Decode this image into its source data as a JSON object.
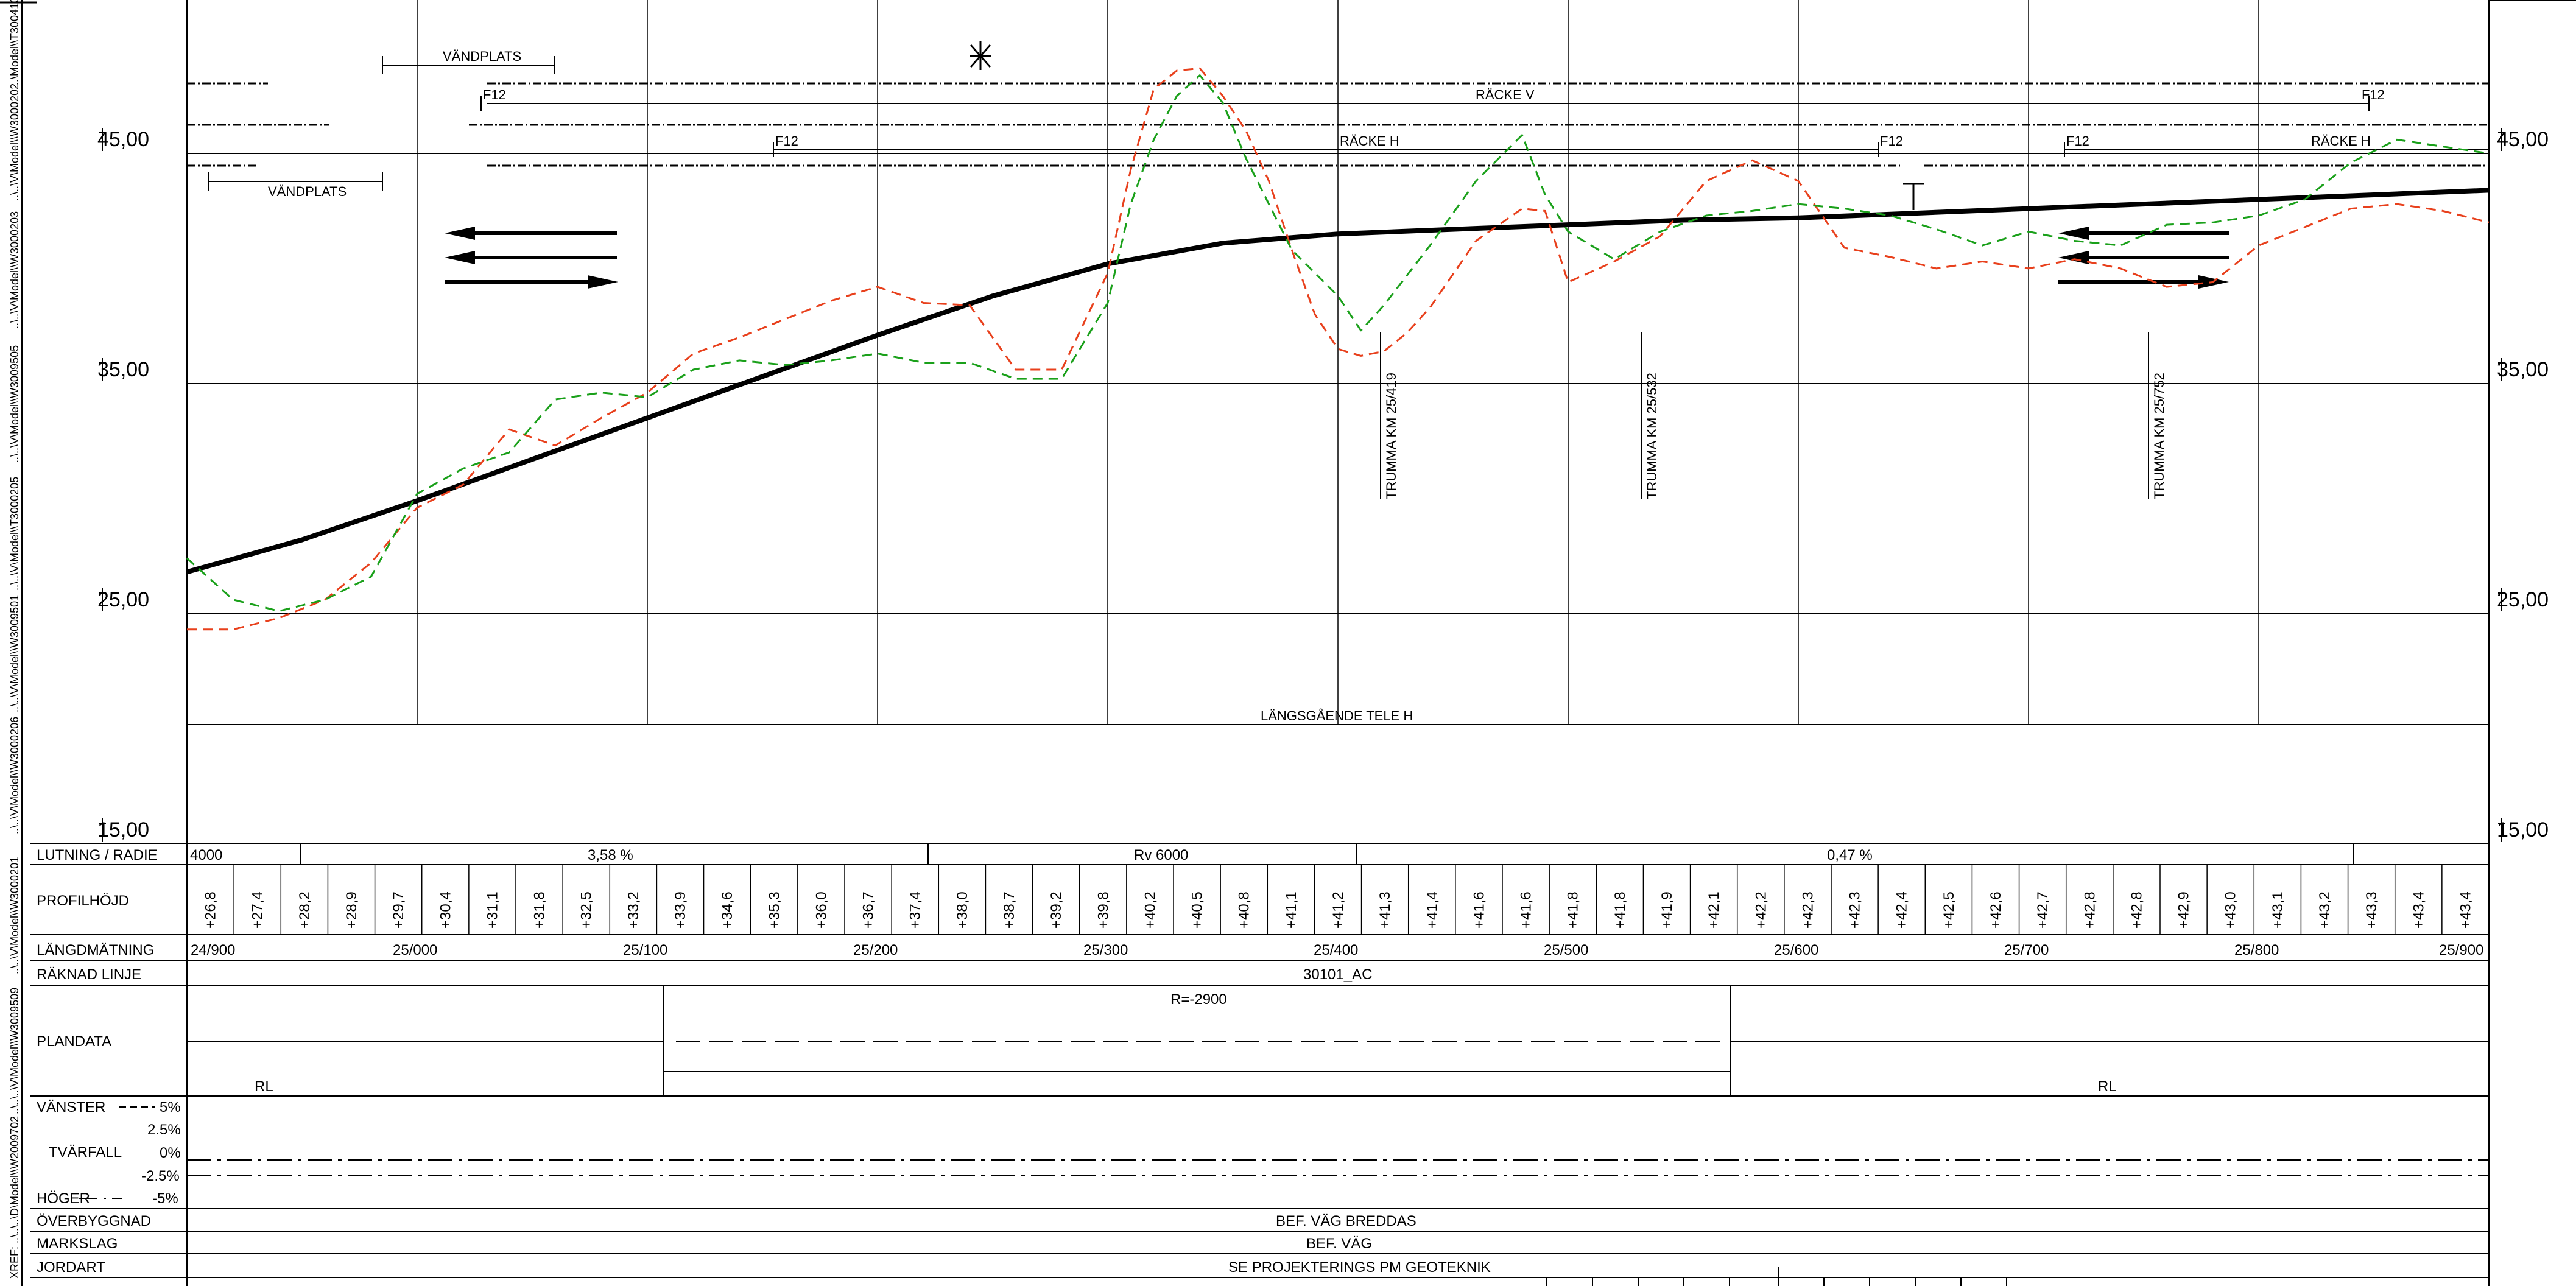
{
  "side_refs": [
    "XREF: ..\\..\\..\\D\\Model\\\\W2009702",
    "..\\..\\..\\V\\Model\\\\W3009509",
    "..\\..\\V\\Model\\\\W3000201",
    "..\\..\\V\\Model\\\\W3000206",
    "..\\..\\V\\Model\\\\W3009501",
    "..\\..\\V\\Model\\\\T3000205",
    "..\\..\\V\\Model\\\\W3009505",
    "..\\..\\V\\Model\\\\W3000203",
    "..\\..\\V\\Model\\\\W3000202",
    "..\\Model\\\\T3004104"
  ],
  "elevation_labels": [
    "45,00",
    "35,00",
    "25,00",
    "15,00"
  ],
  "annotations": {
    "vandplats_top": "VÄNDPLATS",
    "vandplats_left": "VÄNDPLATS",
    "racke_v": "RÄCKE V",
    "racke_h": "RÄCKE H",
    "racke_h_right": "RÄCKE H",
    "f12": "F12",
    "tele": "LÄNGSGÅENDE TELE H",
    "culverts": [
      "TRUMMA KM 25/419",
      "TRUMMA KM 25/532",
      "TRUMMA KM 25/752"
    ]
  },
  "rows": {
    "lutning": "LUTNING / RADIE",
    "profilhojd": "PROFILHÖJD",
    "langdmatning": "LÄNGDMÄTNING",
    "raknad_linje": "RÄKNAD LINJE",
    "plandata": "PLANDATA",
    "vanster": "VÄNSTER",
    "tvarfall": "TVÄRFALL",
    "hoger": "HÖGER",
    "overbyggnad": "ÖVERBYGGNAD",
    "markslag": "MARKSLAG",
    "jordart": "JORDART"
  },
  "lutning_values": {
    "start": "4000",
    "grade1": "3,58 %",
    "vertical_radius": "Rv 6000",
    "grade2": "0,47 %"
  },
  "profile_heights": [
    "+26,8",
    "+27,4",
    "+28,2",
    "+28,9",
    "+29,7",
    "+30,4",
    "+31,1",
    "+31,8",
    "+32,5",
    "+33,2",
    "+33,9",
    "+34,6",
    "+35,3",
    "+36,0",
    "+36,7",
    "+37,4",
    "+38,0",
    "+38,7",
    "+39,2",
    "+39,8",
    "+40,2",
    "+40,5",
    "+40,8",
    "+41,1",
    "+41,2",
    "+41,3",
    "+41,4",
    "+41,6",
    "+41,6",
    "+41,8",
    "+41,8",
    "+41,9",
    "+42,1",
    "+42,2",
    "+42,3",
    "+42,3",
    "+42,4",
    "+42,5",
    "+42,6",
    "+42,7",
    "+42,8",
    "+42,8",
    "+42,9",
    "+43,0",
    "+43,1",
    "+43,2",
    "+43,3",
    "+43,4",
    "+43,4"
  ],
  "chainages": [
    "24/900",
    "25/000",
    "25/100",
    "25/200",
    "25/300",
    "25/400",
    "25/500",
    "25/600",
    "25/700",
    "25/800",
    "25/900"
  ],
  "raknad_linje_value": "30101_AC",
  "plandata_values": {
    "radius": "R=-2900",
    "rl_left": "RL",
    "rl_right": "RL"
  },
  "tvarfall_scale": [
    "5%",
    "2.5%",
    "0%",
    "-2.5%",
    "-5%"
  ],
  "overbyggnad_value": "BEF. VÄG BREDDAS",
  "markslag_value": "BEF. VÄG",
  "jordart_value": "SE PROJEKTERINGS PM GEOTEKNIK",
  "chart_data": {
    "type": "line",
    "xlabel": "",
    "ylabel": "",
    "x_range": [
      24900,
      25900
    ],
    "ylim": [
      15,
      50
    ],
    "y_ticks": [
      15,
      25,
      35,
      45
    ],
    "grid": true,
    "series": [
      {
        "color": "#000000",
        "style": "thick",
        "x": [
          24900,
          24950,
          25000,
          25050,
          25100,
          25150,
          25200,
          25250,
          25300,
          25350,
          25400,
          25450,
          25500,
          25550,
          25600,
          25650,
          25700,
          25750,
          25800,
          25850,
          25900
        ],
        "values": [
          26.8,
          28.2,
          29.9,
          31.7,
          33.5,
          35.3,
          37.1,
          38.8,
          40.2,
          41.1,
          41.5,
          41.7,
          41.9,
          42.1,
          42.2,
          42.4,
          42.6,
          42.8,
          43.0,
          43.2,
          43.4
        ]
      },
      {
        "color": "#e8401c",
        "style": "dashed",
        "x": [
          24900,
          24920,
          24940,
          24960,
          24980,
          25000,
          25020,
          25040,
          25060,
          25080,
          25100,
          25120,
          25140,
          25160,
          25180,
          25200,
          25220,
          25240,
          25260,
          25280,
          25300,
          25310,
          25320,
          25330,
          25340,
          25350,
          25360,
          25370,
          25380,
          25390,
          25400,
          25410,
          25420,
          25430,
          25440,
          25460,
          25480,
          25490,
          25500,
          25520,
          25540,
          25560,
          25580,
          25600,
          25620,
          25640,
          25660,
          25680,
          25700,
          25720,
          25740,
          25760,
          25780,
          25800,
          25820,
          25840,
          25860,
          25880,
          25900
        ],
        "values": [
          24.3,
          24.3,
          24.8,
          25.6,
          27.2,
          29.6,
          30.6,
          33.0,
          32.3,
          33.5,
          34.6,
          36.3,
          37.0,
          37.8,
          38.6,
          39.2,
          38.5,
          38.4,
          35.6,
          35.6,
          39.8,
          44.3,
          47.8,
          48.6,
          48.7,
          47.5,
          46.0,
          43.8,
          40.8,
          38.0,
          36.5,
          36.2,
          36.4,
          37.2,
          38.3,
          41.2,
          42.6,
          42.5,
          39.4,
          40.3,
          41.4,
          43.8,
          44.7,
          43.8,
          40.9,
          40.5,
          40.0,
          40.3,
          40.0,
          40.4,
          40.0,
          39.2,
          39.4,
          41.0,
          41.8,
          42.6,
          42.8,
          42.5,
          42.0
        ]
      },
      {
        "color": "#1aa01a",
        "style": "dashed",
        "x": [
          24900,
          24920,
          24940,
          24960,
          24980,
          25000,
          25020,
          25040,
          25060,
          25080,
          25100,
          25120,
          25140,
          25160,
          25180,
          25200,
          25220,
          25240,
          25260,
          25280,
          25300,
          25310,
          25320,
          25330,
          25340,
          25350,
          25360,
          25380,
          25400,
          25410,
          25420,
          25440,
          25460,
          25480,
          25490,
          25500,
          25520,
          25540,
          25560,
          25580,
          25600,
          25620,
          25640,
          25660,
          25680,
          25700,
          25720,
          25740,
          25760,
          25780,
          25800,
          25820,
          25840,
          25860,
          25880,
          25900
        ],
        "values": [
          27.4,
          25.6,
          25.1,
          25.6,
          26.6,
          30.2,
          31.3,
          32.0,
          34.3,
          34.6,
          34.4,
          35.6,
          36.0,
          35.8,
          36.0,
          36.3,
          35.9,
          35.9,
          35.2,
          35.2,
          38.5,
          42.8,
          45.6,
          47.5,
          48.4,
          47.2,
          44.8,
          40.8,
          38.8,
          37.3,
          38.4,
          41.0,
          43.8,
          45.8,
          43.2,
          41.6,
          40.4,
          41.6,
          42.3,
          42.5,
          42.8,
          42.6,
          42.3,
          41.7,
          41.0,
          41.6,
          41.2,
          41.0,
          41.9,
          42.0,
          42.3,
          43.0,
          44.6,
          45.6,
          45.3,
          45.0
        ]
      }
    ]
  }
}
